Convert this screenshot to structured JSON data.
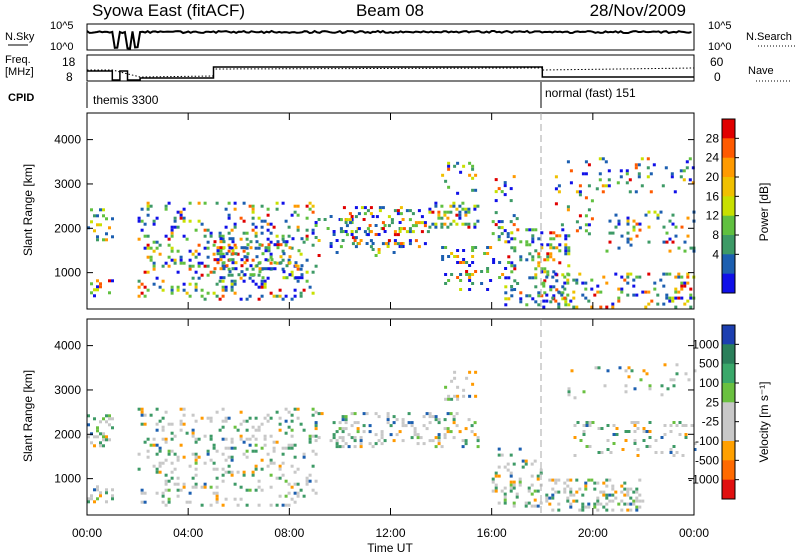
{
  "header": {
    "station": "Syowa East (fitACF)",
    "beam": "Beam 08",
    "date": "28/Nov/2009"
  },
  "panels": {
    "nsky": {
      "label": "N.Sky",
      "ticks_left": [
        "10^5",
        "10^0"
      ],
      "ticks_right": [
        "10^5",
        "10^0"
      ],
      "right_label": "N.Search"
    },
    "freq": {
      "label_top": "Freq.",
      "label_bottom": "[MHz]",
      "ticks_left": [
        "18",
        "8"
      ],
      "ticks_right": [
        "60",
        "0"
      ],
      "right_label": "Nave"
    },
    "cpid": {
      "label": "CPID",
      "segments": [
        "themis 3300",
        "normal (fast) 151"
      ]
    }
  },
  "power_panel": {
    "ylabel": "Slant Range [km]",
    "colorbar_label": "Power [dB]",
    "colorbar_ticks": [
      "28",
      "24",
      "20",
      "16",
      "12",
      "8",
      "4"
    ],
    "colorbar_colors": [
      "#e00000",
      "#ff5a00",
      "#ff9a00",
      "#f0c000",
      "#c8e000",
      "#60c040",
      "#3d9a66",
      "#1c5fb0",
      "#1010e8"
    ]
  },
  "velocity_panel": {
    "ylabel": "Slant Range [km]",
    "colorbar_label": "Velocity [m s⁻¹]",
    "colorbar_ticks": [
      "1000",
      "500",
      "100",
      "25",
      "-25",
      "-100",
      "-500",
      "-1000"
    ],
    "colorbar_colors": [
      "#1c3fb0",
      "#2a7f5a",
      "#3aa86a",
      "#6ac040",
      "#c8c8c8",
      "#c8c8c8",
      "#ffa000",
      "#ff6a00",
      "#e01010"
    ]
  },
  "x_axis": {
    "label": "Time UT",
    "ticks": [
      "00:00",
      "04:00",
      "08:00",
      "12:00",
      "16:00",
      "20:00",
      "00:00"
    ]
  },
  "chart_data": {
    "type": "heatmap",
    "title": "Syowa East (fitACF)",
    "subtitle": "Beam 08",
    "xlabel": "Time UT",
    "ylabel": "Slant Range [km]",
    "x_range_hours": [
      0,
      24
    ],
    "y_range_km": [
      180,
      4600
    ],
    "y_ticks": [
      1000,
      2000,
      3000,
      4000
    ],
    "x_ticks": [
      "00:00",
      "04:00",
      "08:00",
      "12:00",
      "16:00",
      "20:00",
      "00:00"
    ],
    "cpid_change_hour": 18,
    "power_clusters": [
      {
        "t0": 0.0,
        "t1": 1.0,
        "r0": 1750,
        "r1": 2450,
        "density": 0.5
      },
      {
        "t0": 0.0,
        "t1": 1.0,
        "r0": 450,
        "r1": 850,
        "density": 0.55
      },
      {
        "t0": 2.0,
        "t1": 9.0,
        "r0": 400,
        "r1": 2600,
        "density": 0.28
      },
      {
        "t0": 5.0,
        "t1": 8.5,
        "r0": 900,
        "r1": 1800,
        "density": 0.45
      },
      {
        "t0": 9.0,
        "t1": 12.5,
        "r0": 1400,
        "r1": 2300,
        "density": 0.2
      },
      {
        "t0": 10.0,
        "t1": 13.5,
        "r0": 1600,
        "r1": 2500,
        "density": 0.35
      },
      {
        "t0": 13.5,
        "t1": 15.5,
        "r0": 2000,
        "r1": 2600,
        "density": 0.55
      },
      {
        "t0": 14.0,
        "t1": 15.5,
        "r0": 2800,
        "r1": 3500,
        "density": 0.25
      },
      {
        "t0": 14.0,
        "t1": 17.0,
        "r0": 600,
        "r1": 1600,
        "density": 0.3
      },
      {
        "t0": 16.0,
        "t1": 17.0,
        "r0": 1700,
        "r1": 3200,
        "density": 0.2
      },
      {
        "t0": 16.5,
        "t1": 19.0,
        "r0": 300,
        "r1": 2000,
        "density": 0.4
      },
      {
        "t0": 18.0,
        "t1": 24.0,
        "r0": 250,
        "r1": 1000,
        "density": 0.4
      },
      {
        "t0": 18.5,
        "t1": 20.0,
        "r0": 1800,
        "r1": 3600,
        "density": 0.15
      },
      {
        "t0": 20.5,
        "t1": 24.0,
        "r0": 1500,
        "r1": 2400,
        "density": 0.25
      },
      {
        "t0": 20.0,
        "t1": 24.0,
        "r0": 2800,
        "r1": 3600,
        "density": 0.15
      }
    ],
    "velocity_clusters": [
      {
        "t0": 0.0,
        "t1": 1.0,
        "r0": 450,
        "r1": 850,
        "density": 0.6
      },
      {
        "t0": 0.0,
        "t1": 1.0,
        "r0": 1750,
        "r1": 2450,
        "density": 0.5
      },
      {
        "t0": 2.0,
        "t1": 9.0,
        "r0": 400,
        "r1": 2600,
        "density": 0.3
      },
      {
        "t0": 9.0,
        "t1": 15.5,
        "r0": 1700,
        "r1": 2500,
        "density": 0.4
      },
      {
        "t0": 14.0,
        "t1": 15.5,
        "r0": 2800,
        "r1": 3500,
        "density": 0.25
      },
      {
        "t0": 16.0,
        "t1": 18.0,
        "r0": 400,
        "r1": 1700,
        "density": 0.35
      },
      {
        "t0": 18.0,
        "t1": 22.0,
        "r0": 300,
        "r1": 1000,
        "density": 0.5
      },
      {
        "t0": 19.0,
        "t1": 24.0,
        "r0": 1500,
        "r1": 2300,
        "density": 0.25
      },
      {
        "t0": 19.0,
        "t1": 24.0,
        "r0": 2800,
        "r1": 3600,
        "density": 0.15
      }
    ]
  }
}
